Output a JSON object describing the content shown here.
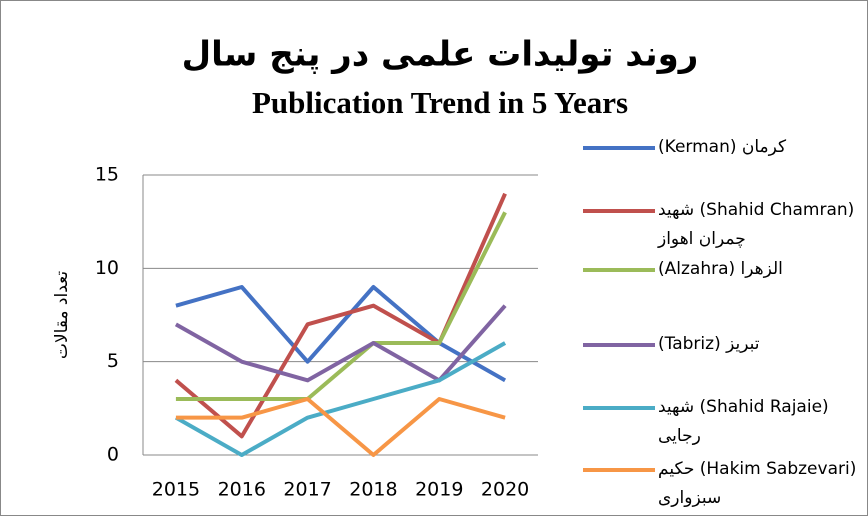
{
  "chart_data": {
    "type": "line",
    "title": "روند تولیدات علمی در پنج سال",
    "subtitle": "Publication Trend in 5 Years",
    "y_label": "تعداد مقالات",
    "categories": [
      "2015",
      "2016",
      "2017",
      "2018",
      "2019",
      "2020"
    ],
    "series": [
      {
        "name": "کرمان (Kerman)",
        "color": "#4472c4",
        "values": [
          8,
          9,
          5,
          9,
          6,
          4
        ]
      },
      {
        "name": "(Shahid Chamran) شهید چمران اهواز",
        "color": "#c0504d",
        "values": [
          4,
          1,
          7,
          8,
          6,
          14
        ]
      },
      {
        "name": "الزهرا (Alzahra)",
        "color": "#9bbb59",
        "values": [
          3,
          3,
          3,
          6,
          6,
          13
        ]
      },
      {
        "name": "تبریز (Tabriz)",
        "color": "#8064a2",
        "values": [
          7,
          5,
          4,
          6,
          4,
          8
        ]
      },
      {
        "name": "(Shahid Rajaie) شهید رجایی",
        "color": "#4bacc6",
        "values": [
          2,
          0,
          2,
          3,
          4,
          6
        ]
      },
      {
        "name": "(Hakim Sabzevari) حکیم سبزواری",
        "color": "#f79646",
        "values": [
          2,
          2,
          3,
          0,
          3,
          2
        ]
      }
    ],
    "ylim": [
      0,
      15
    ],
    "yticks": [
      0,
      5,
      10,
      15
    ],
    "grid": true,
    "legend": "right"
  }
}
